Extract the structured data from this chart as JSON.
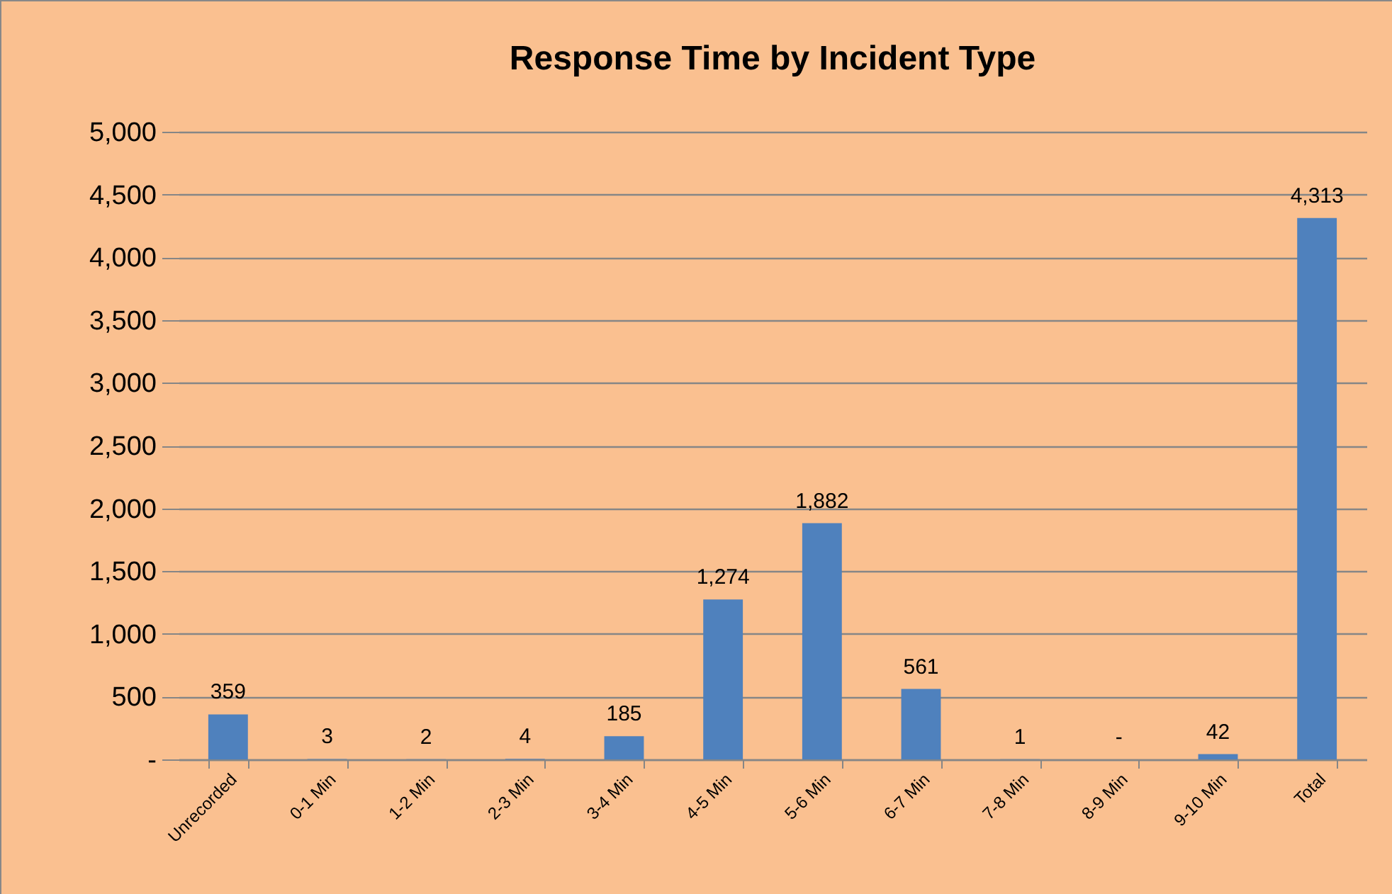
{
  "chart_data": {
    "type": "bar",
    "title": "Response Time by Incident Type",
    "categories": [
      "Unrecorded",
      "0-1 Min",
      "1-2 Min",
      "2-3 Min",
      "3-4 Min",
      "4-5 Min",
      "5-6 Min",
      "6-7 Min",
      "7-8 Min",
      "8-9 Min",
      "9-10 Min",
      "Total"
    ],
    "values": [
      359,
      3,
      2,
      4,
      185,
      1274,
      1882,
      561,
      1,
      0,
      42,
      4313
    ],
    "value_labels": [
      "359",
      "3",
      "2",
      "4",
      "185",
      "1,274",
      "1,882",
      "561",
      "1",
      "-",
      "42",
      "4,313"
    ],
    "color": "#4f81bd",
    "ylim": [
      0,
      5000
    ],
    "yticks": [
      {
        "value": 0,
        "label": "-"
      },
      {
        "value": 500,
        "label": "500"
      },
      {
        "value": 1000,
        "label": "1,000"
      },
      {
        "value": 1500,
        "label": "1,500"
      },
      {
        "value": 2000,
        "label": "2,000"
      },
      {
        "value": 2500,
        "label": "2,500"
      },
      {
        "value": 3000,
        "label": "3,000"
      },
      {
        "value": 3500,
        "label": "3,500"
      },
      {
        "value": 4000,
        "label": "4,000"
      },
      {
        "value": 4500,
        "label": "4,500"
      },
      {
        "value": 5000,
        "label": "5,000"
      }
    ],
    "grid": "y"
  }
}
